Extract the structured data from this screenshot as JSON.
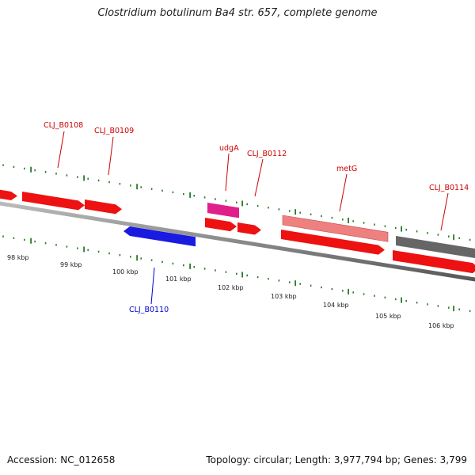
{
  "title": "Clostridium botulinum Ba4 str. 657, complete genome",
  "footer": {
    "accession": "Accession: NC_012658",
    "summary": "Topology: circular; Length: 3,977,794 bp; Genes: 3,799"
  },
  "colors": {
    "backbone": "#808080",
    "tick": "#2a7a2a",
    "forward_label": "#cc0000",
    "reverse_label": "#0000cc",
    "cds": "#ee1111",
    "rrna": "#e0208a",
    "pseudo": "#ee8080",
    "gray_feature": "#666666",
    "reverse_cds": "#1a1ae0"
  },
  "scale": {
    "ticks_kbp": [
      98,
      99,
      100,
      101,
      102,
      103,
      104,
      105,
      106
    ],
    "unit": "kbp"
  },
  "labels": [
    {
      "text": "CLJ_B0108",
      "strand": "forward"
    },
    {
      "text": "CLJ_B0109",
      "strand": "forward"
    },
    {
      "text": "udgA",
      "strand": "forward"
    },
    {
      "text": "CLJ_B0112",
      "strand": "forward"
    },
    {
      "text": "metG",
      "strand": "forward"
    },
    {
      "text": "CLJ_B0114",
      "strand": "forward"
    },
    {
      "text": "CLJ_B0110",
      "strand": "reverse"
    }
  ]
}
